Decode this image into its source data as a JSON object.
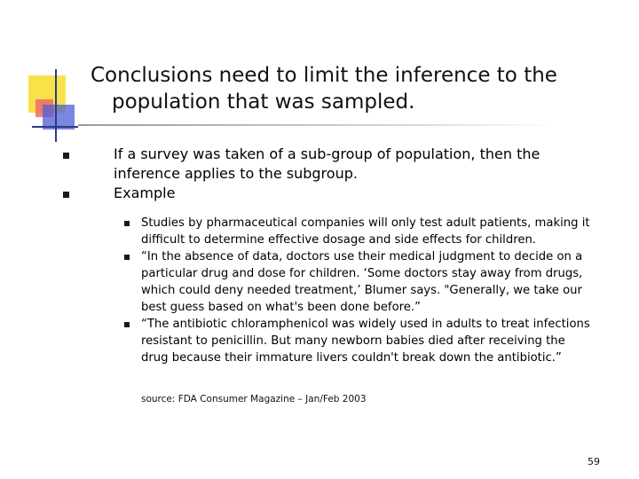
{
  "slide": {
    "title_line1": "Conclusions need to limit the inference to the",
    "title_line2": "population that was sampled.",
    "bullets": [
      {
        "lines": [
          "If a survey was taken of a sub-group of population, then the",
          "inference applies to the subgroup."
        ]
      },
      {
        "lines": [
          "Example"
        ]
      }
    ],
    "sub_bullets": [
      {
        "lines": [
          "Studies by pharmaceutical companies will only test adult patients, making it",
          "difficult to determine effective dosage and side effects for children."
        ]
      },
      {
        "lines": [
          "“In the absence of data, doctors use their medical judgment to decide on a",
          "particular drug and dose for children. ‘Some doctors stay away from drugs,",
          "which could deny needed treatment,’ Blumer says. \"Generally, we take our",
          "best guess based on what's been done before.”"
        ]
      },
      {
        "lines": [
          "“The antibiotic chloramphenicol was widely used in adults to treat infections",
          "resistant to penicillin. But many newborn babies died after receiving the",
          "drug because their immature livers couldn't break down the antibiotic.”"
        ]
      }
    ],
    "source": "source: FDA Consumer Magazine – Jan/Feb 2003",
    "page_number": "59"
  },
  "colors": {
    "logo_yellow": "#f8e24a",
    "logo_red": "#f06868",
    "logo_blue": "#4d5ed6",
    "rule_gray": "#9a9a9a"
  }
}
